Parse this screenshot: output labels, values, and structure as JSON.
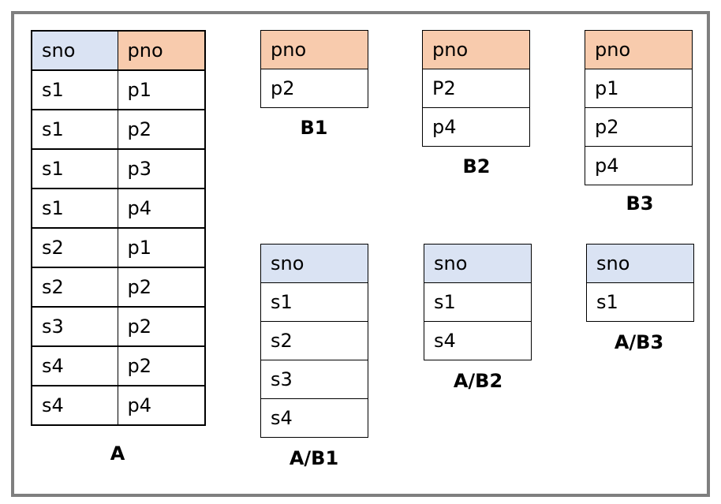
{
  "tables": {
    "A": {
      "caption": "A",
      "headers": [
        "sno",
        "pno"
      ],
      "rows": [
        [
          "s1",
          "p1"
        ],
        [
          "s1",
          "p2"
        ],
        [
          "s1",
          "p3"
        ],
        [
          "s1",
          "p4"
        ],
        [
          "s2",
          "p1"
        ],
        [
          "s2",
          "p2"
        ],
        [
          "s3",
          "p2"
        ],
        [
          "s4",
          "p2"
        ],
        [
          "s4",
          "p4"
        ]
      ]
    },
    "B1": {
      "caption": "B1",
      "header": "pno",
      "rows": [
        "p2"
      ]
    },
    "B2": {
      "caption": "B2",
      "header": "pno",
      "rows": [
        "P2",
        "p4"
      ]
    },
    "B3": {
      "caption": "B3",
      "header": "pno",
      "rows": [
        "p1",
        "p2",
        "p4"
      ]
    },
    "AB1": {
      "caption": "A/B1",
      "header": "sno",
      "rows": [
        "s1",
        "s2",
        "s3",
        "s4"
      ]
    },
    "AB2": {
      "caption": "A/B2",
      "header": "sno",
      "rows": [
        "s1",
        "s4"
      ]
    },
    "AB3": {
      "caption": "A/B3",
      "header": "sno",
      "rows": [
        "s1"
      ]
    }
  },
  "colors": {
    "sno_header": "#dae3f3",
    "pno_header": "#f8cbad",
    "frame": "#7f7f7f"
  }
}
